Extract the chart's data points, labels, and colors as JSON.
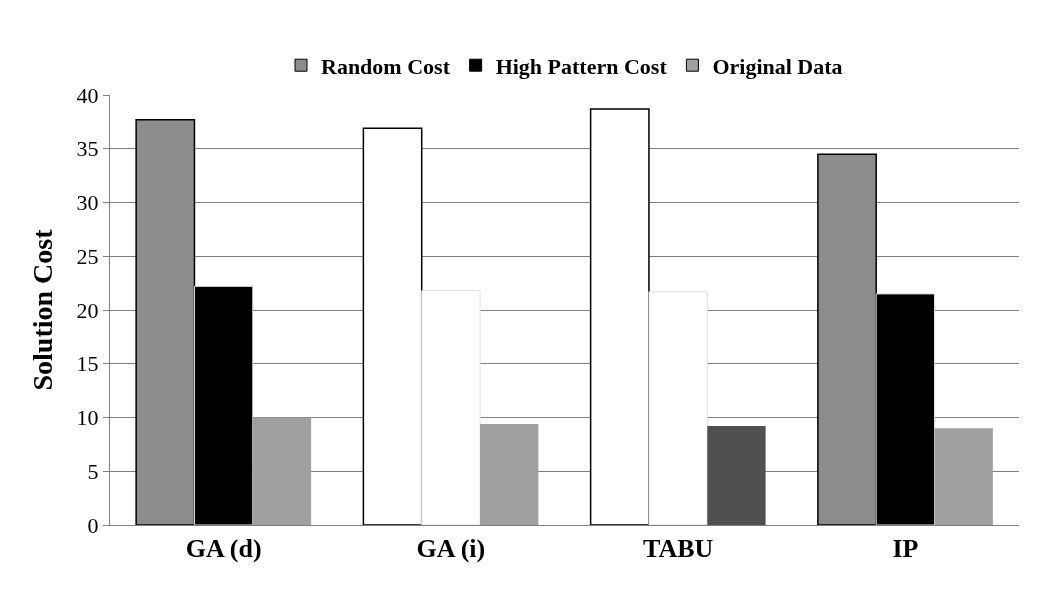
{
  "chart_data": {
    "type": "bar",
    "ylabel": "Solution Cost",
    "categories": [
      "GA (d)",
      "GA (i)",
      "TABU",
      "IP"
    ],
    "series": [
      {
        "name": "Random Cost",
        "color": "#8c8c8c",
        "colors": [
          "#8c8c8c",
          "#ffffff",
          "#ffffff",
          "#8c8c8c"
        ],
        "values": [
          37.7,
          36.9,
          38.7,
          34.5
        ]
      },
      {
        "name": "High Pattern Cost",
        "color": "#000000",
        "colors": [
          "#000000",
          "#ffffff",
          "#ffffff",
          "#000000"
        ],
        "values": [
          22.2,
          21.8,
          21.7,
          21.5
        ]
      },
      {
        "name": "Original Data",
        "color": "#a0a0a0",
        "colors": [
          "#a0a0a0",
          "#a0a0a0",
          "#505050",
          "#a0a0a0"
        ],
        "values": [
          10.0,
          9.4,
          9.2,
          9.0
        ]
      }
    ],
    "ylim": [
      0,
      40
    ],
    "yticks": [
      0,
      5,
      10,
      15,
      20,
      25,
      30,
      35,
      40
    ],
    "grid": "y",
    "legend": "top"
  }
}
